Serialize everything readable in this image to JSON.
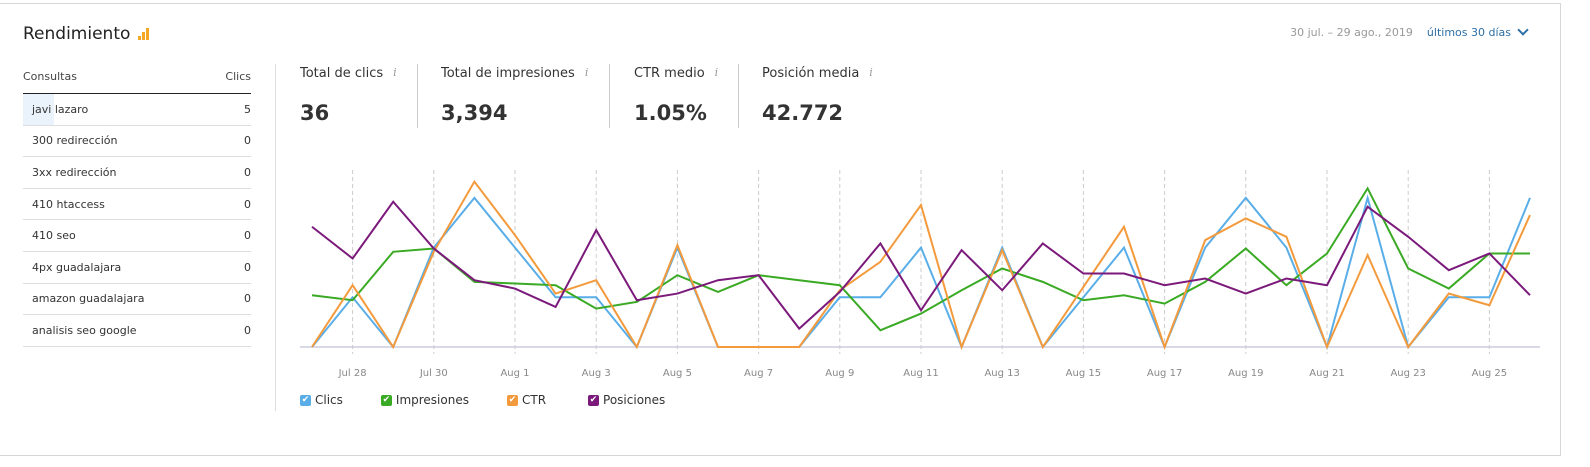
{
  "header": {
    "title": "Rendimiento",
    "icon": "bar-chart-icon",
    "date_range": "30 jul. – 29 ago., 2019",
    "period": "últimos 30 días"
  },
  "queries": {
    "col_query": "Consultas",
    "col_clicks": "Clics",
    "rows": [
      {
        "query": "javi lazaro",
        "clicks": "5"
      },
      {
        "query": "300 redirección",
        "clicks": "0"
      },
      {
        "query": "3xx redirección",
        "clicks": "0"
      },
      {
        "query": "410 htaccess",
        "clicks": "0"
      },
      {
        "query": "410 seo",
        "clicks": "0"
      },
      {
        "query": "4px guadalajara",
        "clicks": "0"
      },
      {
        "query": "amazon guadalajara",
        "clicks": "0"
      },
      {
        "query": "analisis seo google",
        "clicks": "0"
      }
    ]
  },
  "metrics": [
    {
      "label": "Total de clics",
      "value": "36"
    },
    {
      "label": "Total de impresiones",
      "value": "3,394"
    },
    {
      "label": "CTR medio",
      "value": "1.05%"
    },
    {
      "label": "Posición media",
      "value": "42.772"
    }
  ],
  "chart_data": {
    "type": "line",
    "x": [
      "Jul 27",
      "Jul 28",
      "Jul 29",
      "Jul 30",
      "Jul 31",
      "Aug 1",
      "Aug 2",
      "Aug 3",
      "Aug 4",
      "Aug 5",
      "Aug 6",
      "Aug 7",
      "Aug 8",
      "Aug 9",
      "Aug 10",
      "Aug 11",
      "Aug 12",
      "Aug 13",
      "Aug 14",
      "Aug 15",
      "Aug 16",
      "Aug 17",
      "Aug 18",
      "Aug 19",
      "Aug 20",
      "Aug 21",
      "Aug 22",
      "Aug 23",
      "Aug 24",
      "Aug 25",
      "Aug 26"
    ],
    "tick_labels": [
      "Jul 28",
      "Jul 30",
      "Aug 1",
      "Aug 3",
      "Aug 5",
      "Aug 7",
      "Aug 9",
      "Aug 11",
      "Aug 13",
      "Aug 15",
      "Aug 17",
      "Aug 19",
      "Aug 21",
      "Aug 23",
      "Aug 25"
    ],
    "grid": "vertical dashed",
    "legend_placement": "bottom-left",
    "series": [
      {
        "name": "Clics",
        "color": "#5aaee8",
        "ylim": [
          0,
          3.36
        ],
        "values": [
          0,
          1,
          0,
          2,
          3,
          2,
          1,
          1,
          0,
          2,
          0,
          0,
          0,
          1,
          1,
          2,
          0,
          2,
          0,
          1,
          2,
          0,
          2,
          3,
          2,
          0,
          3,
          0,
          1,
          1,
          3
        ]
      },
      {
        "name": "Impresiones",
        "color": "#3aaa24",
        "ylim": [
          0,
          100
        ],
        "values": [
          31,
          28,
          57,
          59,
          39,
          38,
          37,
          23,
          27,
          43,
          33,
          43,
          40,
          37,
          10,
          20,
          34,
          47,
          39,
          28,
          31,
          26,
          39,
          59,
          37,
          56,
          95,
          47,
          35,
          56,
          56
        ]
      },
      {
        "name": "CTR",
        "color": "#f39a3c",
        "ylim": [
          0,
          100
        ],
        "values": [
          0,
          37,
          0,
          57,
          99,
          67,
          32,
          40,
          0,
          61,
          0,
          0,
          0,
          34,
          51,
          85,
          0,
          58,
          0,
          36,
          72,
          0,
          64,
          77,
          66,
          0,
          55,
          0,
          32,
          25,
          79
        ]
      },
      {
        "name": "Posiciones",
        "color": "#7b1a7b",
        "ylim": [
          0,
          100
        ],
        "values": [
          72,
          53,
          87,
          59,
          40,
          35,
          24,
          70,
          28,
          32,
          40,
          43,
          11,
          33,
          62,
          22,
          58,
          34,
          62,
          44,
          44,
          37,
          41,
          32,
          41,
          37,
          84,
          66,
          46,
          56,
          31
        ]
      }
    ]
  }
}
